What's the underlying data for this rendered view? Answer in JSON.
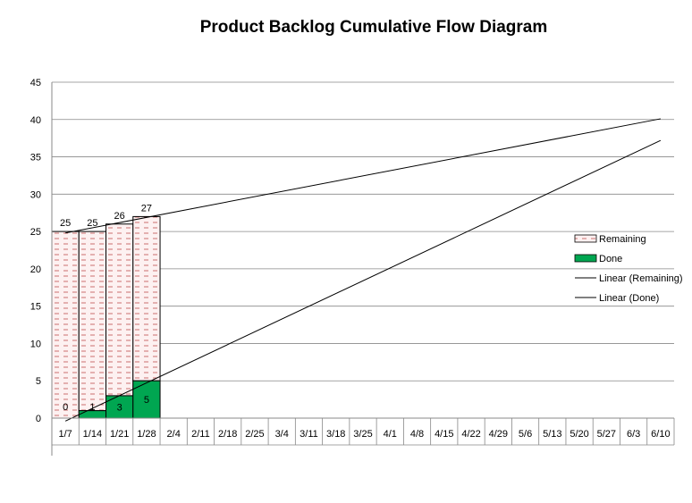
{
  "chart_data": {
    "type": "bar",
    "title": "Product Backlog Cumulative Flow Diagram",
    "xlabel": "",
    "ylabel": "",
    "ylim": [
      0,
      45
    ],
    "yticks": [
      0,
      5,
      10,
      15,
      20,
      25,
      30,
      35,
      40,
      45
    ],
    "categories": [
      "1/7",
      "1/14",
      "1/21",
      "1/28",
      "2/4",
      "2/11",
      "2/18",
      "2/25",
      "3/4",
      "3/11",
      "3/18",
      "3/25",
      "4/1",
      "4/8",
      "4/15",
      "4/22",
      "4/29",
      "5/6",
      "5/13",
      "5/20",
      "5/27",
      "6/3",
      "6/10"
    ],
    "series": [
      {
        "name": "Remaining",
        "style": "pattern",
        "color": "#c0504d",
        "fill": "#fdf1f1",
        "values": [
          25,
          25,
          26,
          27,
          null,
          null,
          null,
          null,
          null,
          null,
          null,
          null,
          null,
          null,
          null,
          null,
          null,
          null,
          null,
          null,
          null,
          null,
          null
        ]
      },
      {
        "name": "Done",
        "style": "solid",
        "color": "#00a651",
        "values": [
          0,
          1,
          3,
          5,
          null,
          null,
          null,
          null,
          null,
          null,
          null,
          null,
          null,
          null,
          null,
          null,
          null,
          null,
          null,
          null,
          null,
          null,
          null
        ]
      }
    ],
    "bar_labels": {
      "remaining": [
        "25",
        "25",
        "26",
        "27"
      ],
      "done": [
        "0",
        "1",
        "3",
        "5"
      ]
    },
    "trendlines": [
      {
        "name": "Linear (Remaining)",
        "start": {
          "x": "1/7",
          "y": 24.8
        },
        "end": {
          "x": "6/10",
          "y": 40.1
        }
      },
      {
        "name": "Linear (Done)",
        "start": {
          "x": "1/7",
          "y": -0.4
        },
        "end": {
          "x": "6/10",
          "y": 37.2
        }
      }
    ],
    "legend_position": "right",
    "grid": "horizontal",
    "colors": {
      "gridline": "#888888",
      "axis": "#888888",
      "trend": "#000000"
    }
  }
}
